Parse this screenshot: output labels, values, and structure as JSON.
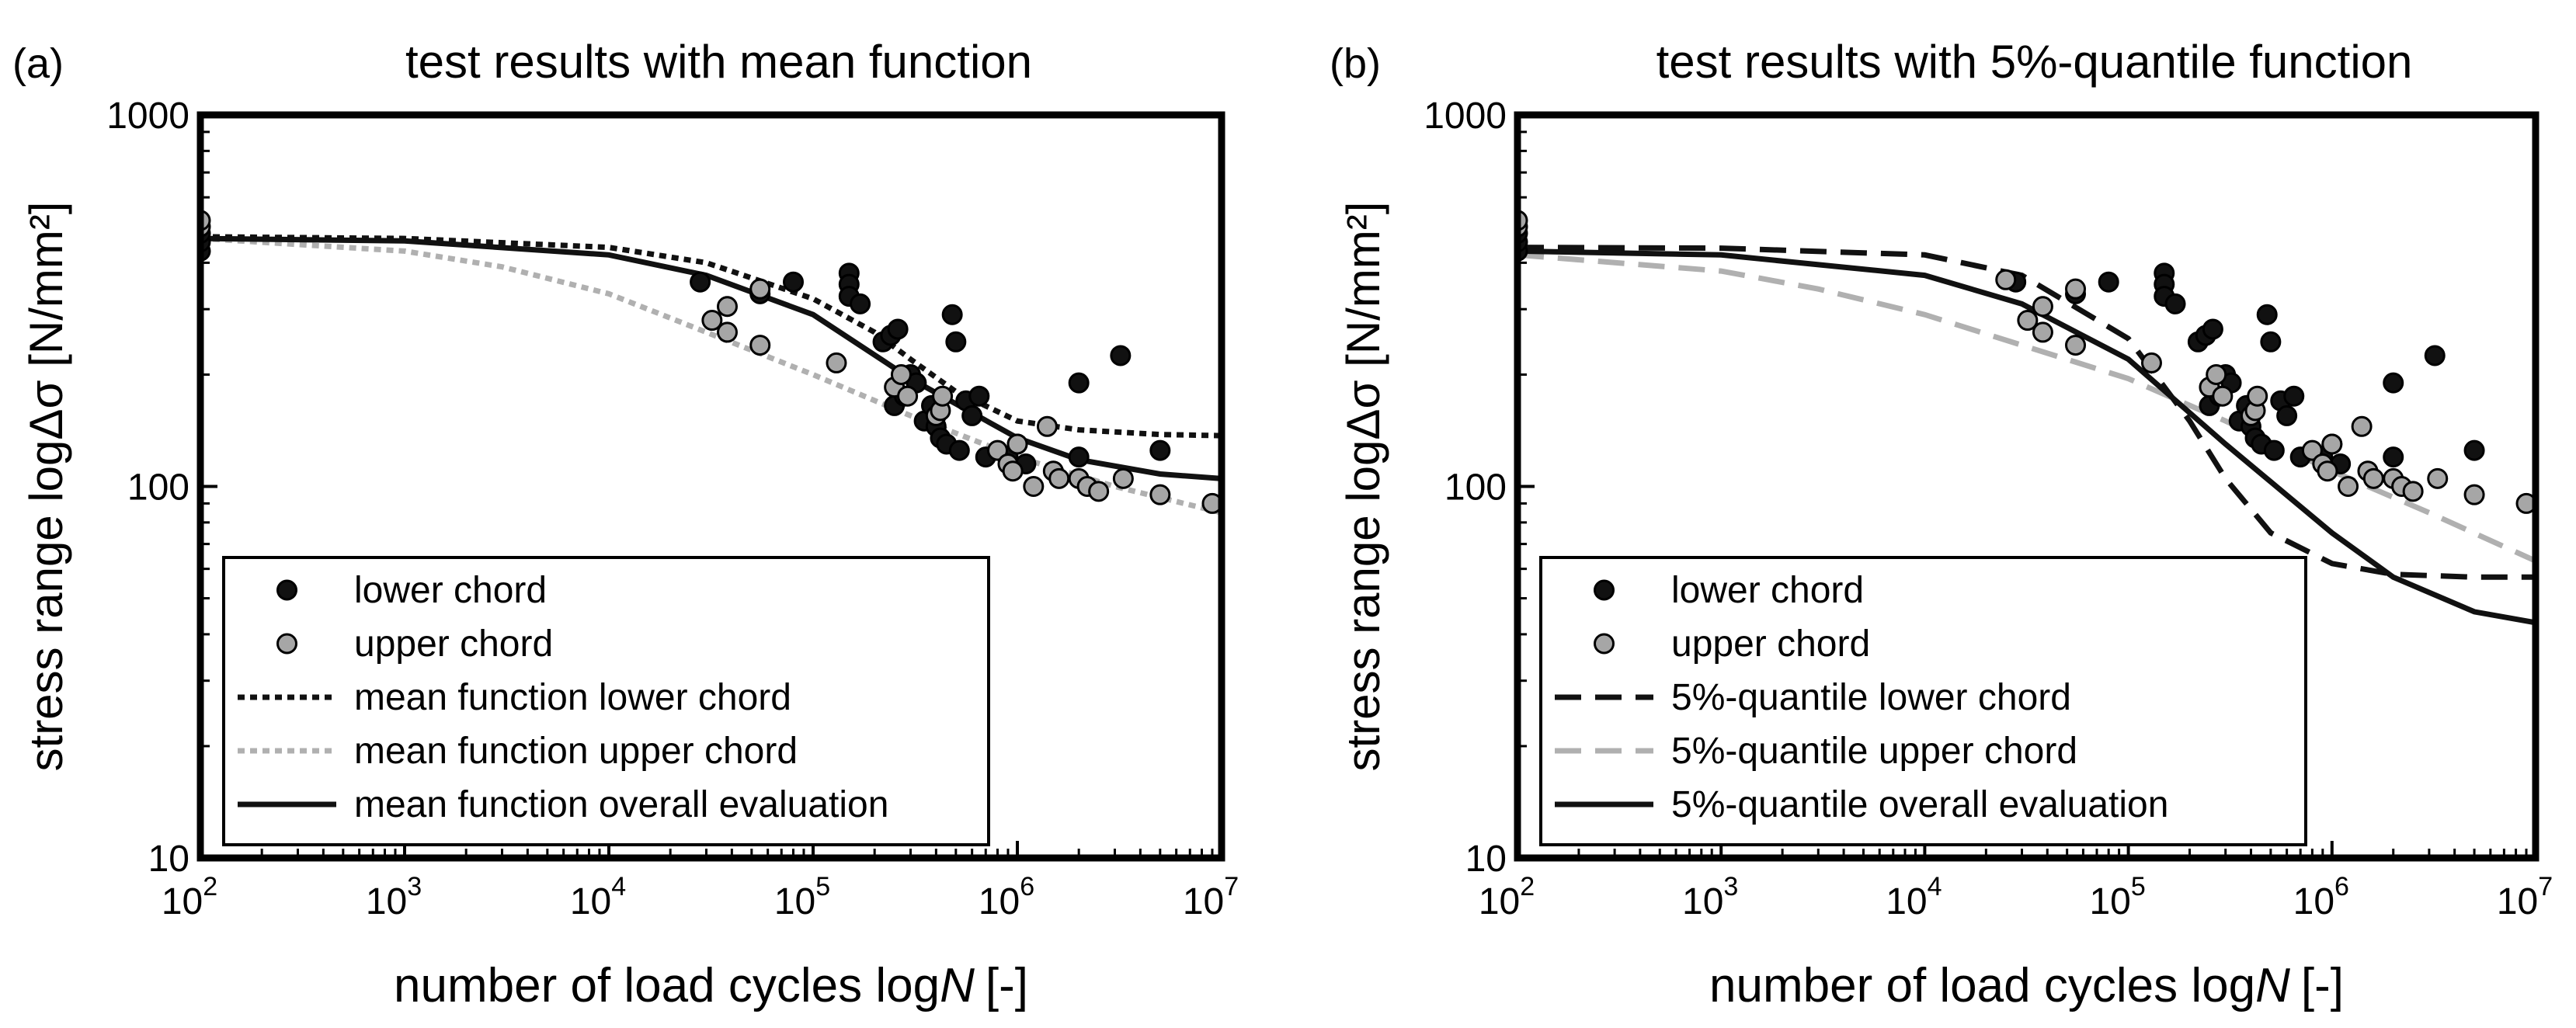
{
  "chart_data": [
    {
      "panel_label": "(a)",
      "type": "scatter",
      "title": "test results with mean function",
      "xlabel": "number of load cycles log",
      "xlabel_var": "N",
      "xlabel_unit": "[-]",
      "ylabel": "stress range logΔσ [N/mm²]",
      "x_scale": "log",
      "y_scale": "log",
      "xlim": [
        100,
        10000000
      ],
      "ylim": [
        10,
        1000
      ],
      "x_ticks": [
        {
          "base": "10",
          "exp": "2"
        },
        {
          "base": "10",
          "exp": "3"
        },
        {
          "base": "10",
          "exp": "4"
        },
        {
          "base": "10",
          "exp": "5"
        },
        {
          "base": "10",
          "exp": "6"
        },
        {
          "base": "10",
          "exp": "7"
        }
      ],
      "y_ticks": [
        "10",
        "100",
        "1000"
      ],
      "legend_position": "bottom-left",
      "legend": [
        {
          "label": "lower chord",
          "kind": "marker",
          "color": "#111111"
        },
        {
          "label": "upper chord",
          "kind": "marker",
          "color": "#a6a6a6"
        },
        {
          "label": "mean function lower chord",
          "kind": "dotted",
          "color": "#111111"
        },
        {
          "label": "mean function upper chord",
          "kind": "dotted",
          "color": "#b0b0b0"
        },
        {
          "label": "mean function overall evaluation",
          "kind": "solid",
          "color": "#111111"
        }
      ],
      "series": [
        {
          "kind": "points",
          "color": "#111111",
          "points": [
            [
              100,
              430
            ],
            [
              100,
              455
            ],
            [
              100,
              480
            ],
            [
              28000,
              355
            ],
            [
              55000,
              330
            ],
            [
              80000,
              355
            ],
            [
              150000,
              375
            ],
            [
              150000,
              350
            ],
            [
              150000,
              325
            ],
            [
              170000,
              310
            ],
            [
              220000,
              245
            ],
            [
              240000,
              255
            ],
            [
              260000,
              265
            ],
            [
              250000,
              165
            ],
            [
              280000,
              175
            ],
            [
              300000,
              200
            ],
            [
              320000,
              190
            ],
            [
              350000,
              150
            ],
            [
              380000,
              165
            ],
            [
              400000,
              145
            ],
            [
              420000,
              135
            ],
            [
              450000,
              130
            ],
            [
              480000,
              290
            ],
            [
              500000,
              245
            ],
            [
              520000,
              125
            ],
            [
              560000,
              170
            ],
            [
              600000,
              155
            ],
            [
              650000,
              175
            ],
            [
              700000,
              120
            ],
            [
              900000,
              120
            ],
            [
              1000000,
              130
            ],
            [
              1100000,
              115
            ],
            [
              2000000,
              190
            ],
            [
              2000000,
              120
            ],
            [
              3200000,
              225
            ],
            [
              5000000,
              125
            ]
          ]
        },
        {
          "kind": "points",
          "color": "#a6a6a6",
          "points": [
            [
              100,
              500
            ],
            [
              100,
              520
            ],
            [
              32000,
              280
            ],
            [
              38000,
              260
            ],
            [
              38000,
              305
            ],
            [
              55000,
              240
            ],
            [
              55000,
              340
            ],
            [
              130000,
              215
            ],
            [
              250000,
              185
            ],
            [
              270000,
              200
            ],
            [
              290000,
              175
            ],
            [
              400000,
              155
            ],
            [
              420000,
              160
            ],
            [
              430000,
              175
            ],
            [
              800000,
              125
            ],
            [
              900000,
              115
            ],
            [
              950000,
              110
            ],
            [
              1000000,
              130
            ],
            [
              1200000,
              100
            ],
            [
              1400000,
              145
            ],
            [
              1500000,
              110
            ],
            [
              1600000,
              105
            ],
            [
              2000000,
              105
            ],
            [
              2200000,
              100
            ],
            [
              2500000,
              97
            ],
            [
              3300000,
              105
            ],
            [
              5000000,
              95
            ],
            [
              9000000,
              90
            ]
          ]
        },
        {
          "kind": "curve",
          "style": "dotted",
          "color": "#111111",
          "points": [
            [
              100,
              470
            ],
            [
              1000,
              465
            ],
            [
              10000,
              440
            ],
            [
              30000,
              400
            ],
            [
              100000,
              320
            ],
            [
              200000,
              260
            ],
            [
              300000,
              220
            ],
            [
              500000,
              180
            ],
            [
              1000000,
              150
            ],
            [
              2000000,
              142
            ],
            [
              5000000,
              138
            ],
            [
              10000000,
              137
            ]
          ]
        },
        {
          "kind": "curve",
          "style": "dotted",
          "color": "#b0b0b0",
          "points": [
            [
              100,
              465
            ],
            [
              1000,
              430
            ],
            [
              3000,
              390
            ],
            [
              10000,
              330
            ],
            [
              30000,
              260
            ],
            [
              100000,
              200
            ],
            [
              300000,
              155
            ],
            [
              1000000,
              120
            ],
            [
              3000000,
              100
            ],
            [
              10000000,
              85
            ]
          ]
        },
        {
          "kind": "curve",
          "style": "solid",
          "color": "#111111",
          "points": [
            [
              100,
              465
            ],
            [
              1000,
              458
            ],
            [
              10000,
              420
            ],
            [
              30000,
              370
            ],
            [
              100000,
              290
            ],
            [
              300000,
              195
            ],
            [
              1000000,
              135
            ],
            [
              2000000,
              118
            ],
            [
              5000000,
              108
            ],
            [
              10000000,
              105
            ]
          ]
        }
      ]
    },
    {
      "panel_label": "(b)",
      "type": "scatter",
      "title": "test results with 5%-quantile function",
      "xlabel": "number of load cycles log",
      "xlabel_var": "N",
      "xlabel_unit": "[-]",
      "ylabel": "stress range logΔσ [N/mm²]",
      "x_scale": "log",
      "y_scale": "log",
      "xlim": [
        100,
        10000000
      ],
      "ylim": [
        10,
        1000
      ],
      "x_ticks": [
        {
          "base": "10",
          "exp": "2"
        },
        {
          "base": "10",
          "exp": "3"
        },
        {
          "base": "10",
          "exp": "4"
        },
        {
          "base": "10",
          "exp": "5"
        },
        {
          "base": "10",
          "exp": "6"
        },
        {
          "base": "10",
          "exp": "7"
        }
      ],
      "y_ticks": [
        "10",
        "100",
        "1000"
      ],
      "legend_position": "bottom-left",
      "legend": [
        {
          "label": "lower chord",
          "kind": "marker",
          "color": "#111111"
        },
        {
          "label": "upper chord",
          "kind": "marker",
          "color": "#a6a6a6"
        },
        {
          "label": "5%-quantile lower chord",
          "kind": "dashed",
          "color": "#111111"
        },
        {
          "label": "5%-quantile upper chord",
          "kind": "dashed",
          "color": "#b0b0b0"
        },
        {
          "label": "5%-quantile overall evaluation",
          "kind": "solid",
          "color": "#111111"
        }
      ],
      "series": [
        {
          "kind": "points",
          "color": "#111111",
          "points": [
            [
              100,
              430
            ],
            [
              100,
              455
            ],
            [
              100,
              480
            ],
            [
              28000,
              355
            ],
            [
              55000,
              330
            ],
            [
              80000,
              355
            ],
            [
              150000,
              375
            ],
            [
              150000,
              350
            ],
            [
              150000,
              325
            ],
            [
              170000,
              310
            ],
            [
              220000,
              245
            ],
            [
              240000,
              255
            ],
            [
              260000,
              265
            ],
            [
              250000,
              165
            ],
            [
              280000,
              175
            ],
            [
              300000,
              200
            ],
            [
              320000,
              190
            ],
            [
              350000,
              150
            ],
            [
              380000,
              165
            ],
            [
              400000,
              145
            ],
            [
              420000,
              135
            ],
            [
              450000,
              130
            ],
            [
              480000,
              290
            ],
            [
              500000,
              245
            ],
            [
              520000,
              125
            ],
            [
              560000,
              170
            ],
            [
              600000,
              155
            ],
            [
              650000,
              175
            ],
            [
              700000,
              120
            ],
            [
              900000,
              120
            ],
            [
              1000000,
              130
            ],
            [
              1100000,
              115
            ],
            [
              2000000,
              190
            ],
            [
              2000000,
              120
            ],
            [
              3200000,
              225
            ],
            [
              5000000,
              125
            ]
          ]
        },
        {
          "kind": "points",
          "color": "#a6a6a6",
          "points": [
            [
              100,
              500
            ],
            [
              100,
              520
            ],
            [
              25000,
              360
            ],
            [
              32000,
              280
            ],
            [
              38000,
              260
            ],
            [
              38000,
              305
            ],
            [
              55000,
              240
            ],
            [
              55000,
              340
            ],
            [
              130000,
              215
            ],
            [
              250000,
              185
            ],
            [
              270000,
              200
            ],
            [
              290000,
              175
            ],
            [
              400000,
              155
            ],
            [
              420000,
              160
            ],
            [
              430000,
              175
            ],
            [
              800000,
              125
            ],
            [
              900000,
              115
            ],
            [
              950000,
              110
            ],
            [
              1000000,
              130
            ],
            [
              1200000,
              100
            ],
            [
              1400000,
              145
            ],
            [
              1500000,
              110
            ],
            [
              1600000,
              105
            ],
            [
              2000000,
              105
            ],
            [
              2200000,
              100
            ],
            [
              2500000,
              97
            ],
            [
              3300000,
              105
            ],
            [
              5000000,
              95
            ],
            [
              9000000,
              90
            ]
          ]
        },
        {
          "kind": "curve",
          "style": "dashed",
          "color": "#111111",
          "points": [
            [
              100,
              440
            ],
            [
              1000,
              438
            ],
            [
              10000,
              420
            ],
            [
              30000,
              370
            ],
            [
              100000,
              250
            ],
            [
              200000,
              150
            ],
            [
              300000,
              105
            ],
            [
              500000,
              75
            ],
            [
              1000000,
              62
            ],
            [
              2000000,
              58
            ],
            [
              5000000,
              57
            ],
            [
              10000000,
              57
            ]
          ]
        },
        {
          "kind": "curve",
          "style": "dashed",
          "color": "#b0b0b0",
          "points": [
            [
              100,
              420
            ],
            [
              1000,
              380
            ],
            [
              3000,
              340
            ],
            [
              10000,
              290
            ],
            [
              30000,
              240
            ],
            [
              100000,
              195
            ],
            [
              300000,
              150
            ],
            [
              1000000,
              110
            ],
            [
              3000000,
              85
            ],
            [
              10000000,
              63
            ]
          ]
        },
        {
          "kind": "curve",
          "style": "solid",
          "color": "#111111",
          "points": [
            [
              100,
              430
            ],
            [
              1000,
              420
            ],
            [
              10000,
              370
            ],
            [
              30000,
              310
            ],
            [
              100000,
              220
            ],
            [
              300000,
              130
            ],
            [
              1000000,
              75
            ],
            [
              2000000,
              57
            ],
            [
              5000000,
              46
            ],
            [
              10000000,
              43
            ]
          ]
        }
      ]
    }
  ]
}
